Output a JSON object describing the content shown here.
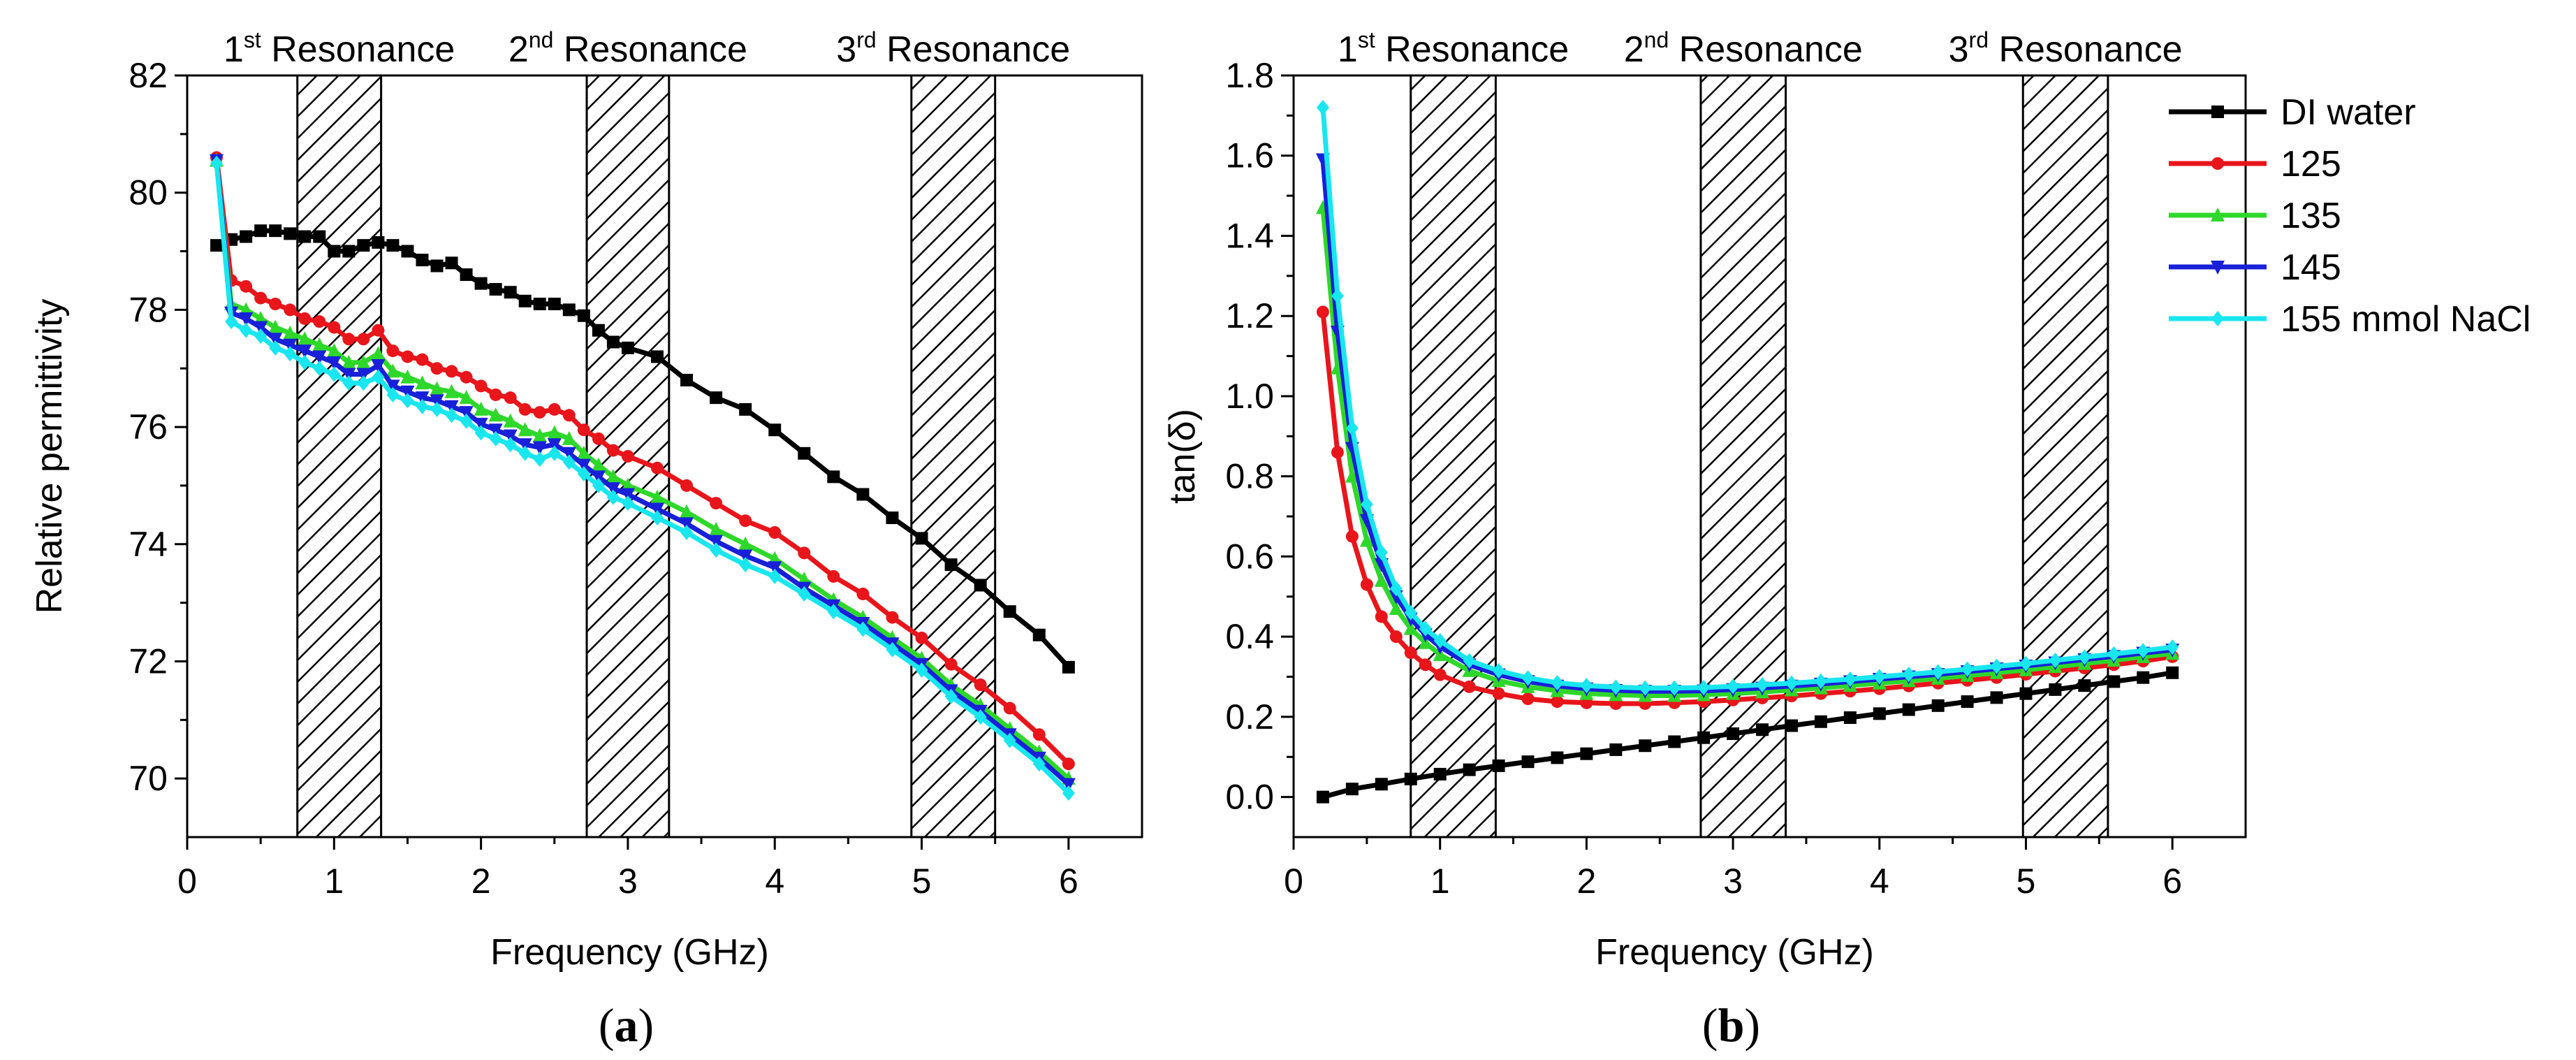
{
  "chart_data": [
    {
      "type": "line",
      "panel_label": "(a)",
      "panel_letter": "a",
      "xlabel": "Frequency (GHz)",
      "ylabel": "Relative permittivity",
      "xlim": [
        0,
        6.5
      ],
      "ylim": [
        69,
        82
      ],
      "xticks": [
        0,
        1,
        2,
        3,
        4,
        5,
        6
      ],
      "yticks": [
        70,
        72,
        74,
        76,
        78,
        80,
        82
      ],
      "resonances": [
        {
          "ordinal": "1",
          "suffix": "st",
          "text": " Resonance",
          "range": [
            0.75,
            1.32
          ]
        },
        {
          "ordinal": "2",
          "suffix": "nd",
          "text": " Resonance",
          "range": [
            2.72,
            3.28
          ]
        },
        {
          "ordinal": "3",
          "suffix": "rd",
          "text": " Resonance",
          "range": [
            4.93,
            5.5
          ]
        }
      ],
      "series": [
        {
          "name": "DI water",
          "color": "#000000",
          "marker": "square",
          "x": [
            0.2,
            0.3,
            0.4,
            0.5,
            0.6,
            0.7,
            0.8,
            0.9,
            1.0,
            1.1,
            1.2,
            1.3,
            1.4,
            1.5,
            1.6,
            1.7,
            1.8,
            1.9,
            2.0,
            2.1,
            2.2,
            2.3,
            2.4,
            2.5,
            2.6,
            2.7,
            2.8,
            2.9,
            3.0,
            3.2,
            3.4,
            3.6,
            3.8,
            4.0,
            4.2,
            4.4,
            4.6,
            4.8,
            5.0,
            5.2,
            5.4,
            5.6,
            5.8,
            6.0
          ],
          "y": [
            79.1,
            79.2,
            79.25,
            79.35,
            79.35,
            79.3,
            79.25,
            79.25,
            79.0,
            79.0,
            79.1,
            79.15,
            79.1,
            79.0,
            78.85,
            78.75,
            78.8,
            78.6,
            78.45,
            78.35,
            78.3,
            78.15,
            78.1,
            78.1,
            78.0,
            77.9,
            77.65,
            77.45,
            77.35,
            77.2,
            76.8,
            76.5,
            76.3,
            75.95,
            75.55,
            75.15,
            74.85,
            74.45,
            74.1,
            73.65,
            73.3,
            72.85,
            72.45,
            71.9
          ]
        },
        {
          "name": "125",
          "color": "#e8151b",
          "marker": "circle",
          "x": [
            0.2,
            0.3,
            0.4,
            0.5,
            0.6,
            0.7,
            0.8,
            0.9,
            1.0,
            1.1,
            1.2,
            1.3,
            1.4,
            1.5,
            1.6,
            1.7,
            1.8,
            1.9,
            2.0,
            2.1,
            2.2,
            2.3,
            2.4,
            2.5,
            2.6,
            2.7,
            2.8,
            2.9,
            3.0,
            3.2,
            3.4,
            3.6,
            3.8,
            4.0,
            4.2,
            4.4,
            4.6,
            4.8,
            5.0,
            5.2,
            5.4,
            5.6,
            5.8,
            6.0
          ],
          "y": [
            80.6,
            78.5,
            78.4,
            78.2,
            78.1,
            78.0,
            77.85,
            77.8,
            77.7,
            77.5,
            77.5,
            77.65,
            77.3,
            77.2,
            77.15,
            77.0,
            76.95,
            76.85,
            76.7,
            76.55,
            76.5,
            76.3,
            76.25,
            76.3,
            76.2,
            75.95,
            75.8,
            75.6,
            75.5,
            75.3,
            75.0,
            74.7,
            74.4,
            74.2,
            73.85,
            73.45,
            73.15,
            72.75,
            72.4,
            71.95,
            71.6,
            71.2,
            70.75,
            70.25
          ]
        },
        {
          "name": "135",
          "color": "#2ed82a",
          "marker": "triangle-up",
          "x": [
            0.2,
            0.3,
            0.4,
            0.5,
            0.6,
            0.7,
            0.8,
            0.9,
            1.0,
            1.1,
            1.2,
            1.3,
            1.4,
            1.5,
            1.6,
            1.7,
            1.8,
            1.9,
            2.0,
            2.1,
            2.2,
            2.3,
            2.4,
            2.5,
            2.6,
            2.7,
            2.8,
            2.9,
            3.0,
            3.2,
            3.4,
            3.6,
            3.8,
            4.0,
            4.2,
            4.4,
            4.6,
            4.8,
            5.0,
            5.2,
            5.4,
            5.6,
            5.8,
            6.0
          ],
          "y": [
            80.55,
            78.1,
            78.0,
            77.85,
            77.7,
            77.6,
            77.5,
            77.4,
            77.3,
            77.1,
            77.1,
            77.25,
            76.95,
            76.85,
            76.75,
            76.65,
            76.6,
            76.5,
            76.3,
            76.2,
            76.1,
            75.95,
            75.85,
            75.9,
            75.8,
            75.55,
            75.35,
            75.15,
            75.0,
            74.8,
            74.55,
            74.25,
            74.0,
            73.75,
            73.4,
            73.05,
            72.75,
            72.4,
            72.05,
            71.6,
            71.25,
            70.85,
            70.45,
            70.0
          ]
        },
        {
          "name": "145",
          "color": "#1820d8",
          "marker": "triangle-down",
          "x": [
            0.2,
            0.3,
            0.4,
            0.5,
            0.6,
            0.7,
            0.8,
            0.9,
            1.0,
            1.1,
            1.2,
            1.3,
            1.4,
            1.5,
            1.6,
            1.7,
            1.8,
            1.9,
            2.0,
            2.1,
            2.2,
            2.3,
            2.4,
            2.5,
            2.6,
            2.7,
            2.8,
            2.9,
            3.0,
            3.2,
            3.4,
            3.6,
            3.8,
            4.0,
            4.2,
            4.4,
            4.6,
            4.8,
            5.0,
            5.2,
            5.4,
            5.6,
            5.8,
            6.0
          ],
          "y": [
            80.55,
            77.95,
            77.85,
            77.7,
            77.5,
            77.4,
            77.3,
            77.2,
            77.1,
            76.9,
            76.9,
            77.05,
            76.7,
            76.6,
            76.5,
            76.45,
            76.35,
            76.25,
            76.05,
            75.95,
            75.85,
            75.7,
            75.65,
            75.7,
            75.55,
            75.35,
            75.15,
            74.95,
            74.85,
            74.6,
            74.35,
            74.05,
            73.8,
            73.6,
            73.25,
            72.95,
            72.65,
            72.3,
            71.95,
            71.5,
            71.15,
            70.75,
            70.35,
            69.9
          ]
        },
        {
          "name": "155 mmol NaCl",
          "color": "#19e6ee",
          "marker": "diamond",
          "x": [
            0.2,
            0.3,
            0.4,
            0.5,
            0.6,
            0.7,
            0.8,
            0.9,
            1.0,
            1.1,
            1.2,
            1.3,
            1.4,
            1.5,
            1.6,
            1.7,
            1.8,
            1.9,
            2.0,
            2.1,
            2.2,
            2.3,
            2.4,
            2.5,
            2.6,
            2.7,
            2.8,
            2.9,
            3.0,
            3.2,
            3.4,
            3.6,
            3.8,
            4.0,
            4.2,
            4.4,
            4.6,
            4.8,
            5.0,
            5.2,
            5.4,
            5.6,
            5.8,
            6.0
          ],
          "y": [
            80.5,
            77.8,
            77.65,
            77.55,
            77.35,
            77.25,
            77.1,
            77.0,
            76.9,
            76.75,
            76.75,
            76.85,
            76.55,
            76.45,
            76.35,
            76.3,
            76.2,
            76.1,
            75.9,
            75.8,
            75.7,
            75.55,
            75.45,
            75.55,
            75.4,
            75.2,
            75.0,
            74.8,
            74.7,
            74.45,
            74.2,
            73.9,
            73.65,
            73.45,
            73.15,
            72.85,
            72.55,
            72.2,
            71.85,
            71.4,
            71.05,
            70.65,
            70.25,
            69.75
          ]
        }
      ]
    },
    {
      "type": "line",
      "panel_label": "(b)",
      "panel_letter": "b",
      "xlabel": "Frequency (GHz)",
      "ylabel": "tan(δ)",
      "xlim": [
        0,
        6.5
      ],
      "ylim": [
        -0.1,
        1.8
      ],
      "xticks": [
        0,
        1,
        2,
        3,
        4,
        5,
        6
      ],
      "yticks": [
        0.0,
        0.2,
        0.4,
        0.6,
        0.8,
        1.0,
        1.2,
        1.4,
        1.6,
        1.8
      ],
      "ytick_labels": [
        "0.0",
        "0.2",
        "0.4",
        "0.6",
        "0.8",
        "1.0",
        "1.2",
        "1.4",
        "1.6",
        "1.8"
      ],
      "legend_position": "top-right",
      "resonances": [
        {
          "ordinal": "1",
          "suffix": "st",
          "text": " Resonance",
          "range": [
            0.8,
            1.38
          ]
        },
        {
          "ordinal": "2",
          "suffix": "nd",
          "text": " Resonance",
          "range": [
            2.78,
            3.36
          ]
        },
        {
          "ordinal": "3",
          "suffix": "rd",
          "text": " Resonance",
          "range": [
            4.98,
            5.56
          ]
        }
      ],
      "series": [
        {
          "name": "DI water",
          "color": "#000000",
          "marker": "square",
          "x": [
            0.2,
            0.4,
            0.6,
            0.8,
            1.0,
            1.2,
            1.4,
            1.6,
            1.8,
            2.0,
            2.2,
            2.4,
            2.6,
            2.8,
            3.0,
            3.2,
            3.4,
            3.6,
            3.8,
            4.0,
            4.2,
            4.4,
            4.6,
            4.8,
            5.0,
            5.2,
            5.4,
            5.6,
            5.8,
            6.0
          ],
          "y": [
            0.0,
            0.02,
            0.032,
            0.045,
            0.057,
            0.068,
            0.078,
            0.088,
            0.098,
            0.108,
            0.118,
            0.128,
            0.138,
            0.148,
            0.158,
            0.168,
            0.178,
            0.188,
            0.198,
            0.208,
            0.218,
            0.228,
            0.238,
            0.248,
            0.258,
            0.268,
            0.278,
            0.288,
            0.298,
            0.31
          ]
        },
        {
          "name": "125",
          "color": "#e8151b",
          "marker": "circle",
          "x": [
            0.2,
            0.3,
            0.4,
            0.5,
            0.6,
            0.7,
            0.8,
            0.9,
            1.0,
            1.2,
            1.4,
            1.6,
            1.8,
            2.0,
            2.2,
            2.4,
            2.6,
            2.8,
            3.0,
            3.2,
            3.4,
            3.6,
            3.8,
            4.0,
            4.2,
            4.4,
            4.6,
            4.8,
            5.0,
            5.2,
            5.4,
            5.6,
            5.8,
            6.0
          ],
          "y": [
            1.21,
            0.86,
            0.65,
            0.53,
            0.45,
            0.4,
            0.36,
            0.33,
            0.305,
            0.275,
            0.258,
            0.245,
            0.238,
            0.235,
            0.233,
            0.233,
            0.235,
            0.238,
            0.242,
            0.247,
            0.252,
            0.258,
            0.264,
            0.27,
            0.277,
            0.284,
            0.291,
            0.298,
            0.306,
            0.314,
            0.322,
            0.33,
            0.339,
            0.35
          ]
        },
        {
          "name": "135",
          "color": "#2ed82a",
          "marker": "triangle-up",
          "x": [
            0.2,
            0.3,
            0.4,
            0.5,
            0.6,
            0.7,
            0.8,
            0.9,
            1.0,
            1.2,
            1.4,
            1.6,
            1.8,
            2.0,
            2.2,
            2.4,
            2.6,
            2.8,
            3.0,
            3.2,
            3.4,
            3.6,
            3.8,
            4.0,
            4.2,
            4.4,
            4.6,
            4.8,
            5.0,
            5.2,
            5.4,
            5.6,
            5.8,
            6.0
          ],
          "y": [
            1.47,
            1.07,
            0.8,
            0.64,
            0.54,
            0.47,
            0.42,
            0.385,
            0.355,
            0.315,
            0.29,
            0.275,
            0.265,
            0.258,
            0.255,
            0.253,
            0.253,
            0.255,
            0.258,
            0.262,
            0.267,
            0.272,
            0.278,
            0.284,
            0.29,
            0.296,
            0.303,
            0.31,
            0.317,
            0.325,
            0.333,
            0.341,
            0.35,
            0.358
          ]
        },
        {
          "name": "145",
          "color": "#1820d8",
          "marker": "triangle-down",
          "x": [
            0.2,
            0.3,
            0.4,
            0.5,
            0.6,
            0.7,
            0.8,
            0.9,
            1.0,
            1.2,
            1.4,
            1.6,
            1.8,
            2.0,
            2.2,
            2.4,
            2.6,
            2.8,
            3.0,
            3.2,
            3.4,
            3.6,
            3.8,
            4.0,
            4.2,
            4.4,
            4.6,
            4.8,
            5.0,
            5.2,
            5.4,
            5.6,
            5.8,
            6.0
          ],
          "y": [
            1.59,
            1.16,
            0.87,
            0.69,
            0.58,
            0.5,
            0.445,
            0.405,
            0.375,
            0.33,
            0.305,
            0.288,
            0.277,
            0.27,
            0.266,
            0.264,
            0.264,
            0.265,
            0.268,
            0.272,
            0.277,
            0.282,
            0.288,
            0.294,
            0.3,
            0.306,
            0.313,
            0.32,
            0.327,
            0.335,
            0.343,
            0.351,
            0.359,
            0.367
          ]
        },
        {
          "name": "155 mmol NaCl",
          "color": "#19e6ee",
          "marker": "diamond",
          "x": [
            0.2,
            0.3,
            0.4,
            0.5,
            0.6,
            0.7,
            0.8,
            0.9,
            1.0,
            1.2,
            1.4,
            1.6,
            1.8,
            2.0,
            2.2,
            2.4,
            2.6,
            2.8,
            3.0,
            3.2,
            3.4,
            3.6,
            3.8,
            4.0,
            4.2,
            4.4,
            4.6,
            4.8,
            5.0,
            5.2,
            5.4,
            5.6,
            5.8,
            6.0
          ],
          "y": [
            1.72,
            1.25,
            0.92,
            0.73,
            0.61,
            0.52,
            0.46,
            0.42,
            0.39,
            0.34,
            0.315,
            0.297,
            0.285,
            0.278,
            0.274,
            0.272,
            0.272,
            0.273,
            0.276,
            0.28,
            0.284,
            0.289,
            0.294,
            0.3,
            0.306,
            0.312,
            0.319,
            0.326,
            0.333,
            0.341,
            0.349,
            0.357,
            0.365,
            0.374
          ]
        }
      ]
    }
  ]
}
